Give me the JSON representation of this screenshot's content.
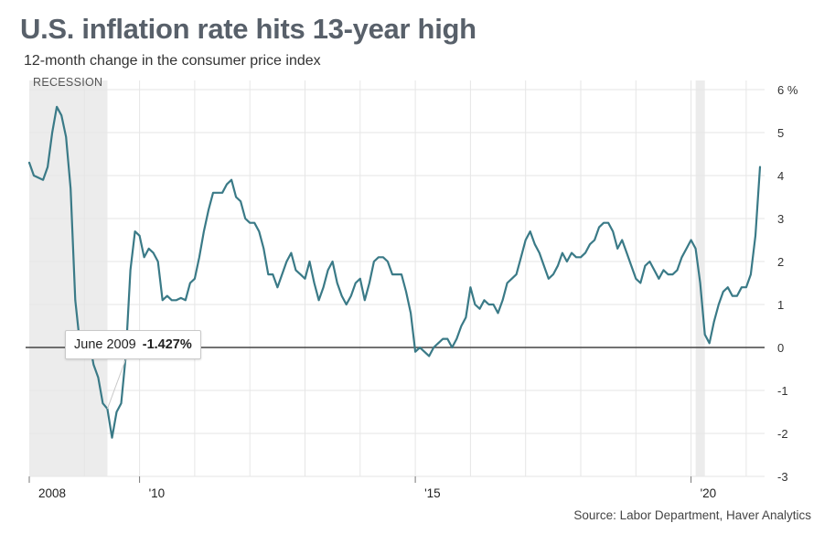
{
  "title": "U.S. inflation rate hits 13-year high",
  "subtitle": "12-month change in the consumer price index",
  "source": "Source: Labor Department, Haver Analytics",
  "recession_label": "RECESSION",
  "tooltip": {
    "label": "June 2009",
    "value": "-1.427%"
  },
  "colors": {
    "line": "#3a7a87",
    "recession": "#ececec",
    "zero_line": "#444444",
    "grid": "#e6e6e6",
    "title": "#58606a"
  },
  "chart_data": {
    "type": "line",
    "title": "U.S. inflation rate hits 13-year high",
    "subtitle": "12-month change in the consumer price index",
    "ylabel": "",
    "xlabel": "",
    "ylim": [
      -3,
      6
    ],
    "xlim": [
      "2008-01",
      "2021-05"
    ],
    "y_ticks": [
      6,
      5,
      4,
      3,
      2,
      1,
      0,
      -1,
      -2,
      -3
    ],
    "y_tick_labels": [
      "6 %",
      "5",
      "4",
      "3",
      "2",
      "1",
      "0",
      "-1",
      "-2",
      "-3"
    ],
    "x_ticks": [
      {
        "date": "2008-01",
        "label": "2008"
      },
      {
        "date": "2010-01",
        "label": "'10"
      },
      {
        "date": "2015-01",
        "label": "'15"
      },
      {
        "date": "2020-01",
        "label": "'20"
      }
    ],
    "x_gridlines": [
      "2009-01",
      "2010-01",
      "2011-01",
      "2012-01",
      "2013-01",
      "2014-01",
      "2015-01",
      "2016-01",
      "2017-01",
      "2018-01",
      "2019-01",
      "2020-01",
      "2021-01"
    ],
    "grid": true,
    "recessions": [
      {
        "start": "2008-01",
        "end": "2009-06"
      },
      {
        "start": "2020-02",
        "end": "2020-04"
      }
    ],
    "annotation": {
      "date": "2009-06",
      "value": -1.427
    },
    "series": [
      {
        "values": [
          [
            "2008-01",
            4.3
          ],
          [
            "2008-02",
            4.0
          ],
          [
            "2008-04",
            3.9
          ],
          [
            "2008-05",
            4.2
          ],
          [
            "2008-06",
            5.0
          ],
          [
            "2008-07",
            5.6
          ],
          [
            "2008-08",
            5.4
          ],
          [
            "2008-09",
            4.9
          ],
          [
            "2008-10",
            3.7
          ],
          [
            "2008-11",
            1.1
          ],
          [
            "2008-12",
            0.1
          ],
          [
            "2009-01",
            0.0
          ],
          [
            "2009-02",
            0.2
          ],
          [
            "2009-03",
            -0.4
          ],
          [
            "2009-04",
            -0.7
          ],
          [
            "2009-05",
            -1.3
          ],
          [
            "2009-06",
            -1.427
          ],
          [
            "2009-07",
            -2.1
          ],
          [
            "2009-08",
            -1.5
          ],
          [
            "2009-09",
            -1.3
          ],
          [
            "2009-10",
            -0.2
          ],
          [
            "2009-11",
            1.8
          ],
          [
            "2009-12",
            2.7
          ],
          [
            "2010-01",
            2.6
          ],
          [
            "2010-02",
            2.1
          ],
          [
            "2010-03",
            2.3
          ],
          [
            "2010-04",
            2.2
          ],
          [
            "2010-05",
            2.0
          ],
          [
            "2010-06",
            1.1
          ],
          [
            "2010-07",
            1.2
          ],
          [
            "2010-08",
            1.1
          ],
          [
            "2010-09",
            1.1
          ],
          [
            "2010-10",
            1.15
          ],
          [
            "2010-11",
            1.1
          ],
          [
            "2010-12",
            1.5
          ],
          [
            "2011-01",
            1.6
          ],
          [
            "2011-02",
            2.1
          ],
          [
            "2011-03",
            2.7
          ],
          [
            "2011-04",
            3.2
          ],
          [
            "2011-05",
            3.6
          ],
          [
            "2011-06",
            3.6
          ],
          [
            "2011-07",
            3.6
          ],
          [
            "2011-08",
            3.8
          ],
          [
            "2011-09",
            3.9
          ],
          [
            "2011-10",
            3.5
          ],
          [
            "2011-11",
            3.4
          ],
          [
            "2011-12",
            3.0
          ],
          [
            "2012-01",
            2.9
          ],
          [
            "2012-02",
            2.9
          ],
          [
            "2012-03",
            2.7
          ],
          [
            "2012-04",
            2.3
          ],
          [
            "2012-05",
            1.7
          ],
          [
            "2012-06",
            1.7
          ],
          [
            "2012-07",
            1.4
          ],
          [
            "2012-08",
            1.7
          ],
          [
            "2012-09",
            2.0
          ],
          [
            "2012-10",
            2.2
          ],
          [
            "2012-11",
            1.8
          ],
          [
            "2012-12",
            1.7
          ],
          [
            "2013-01",
            1.6
          ],
          [
            "2013-02",
            2.0
          ],
          [
            "2013-03",
            1.5
          ],
          [
            "2013-04",
            1.1
          ],
          [
            "2013-05",
            1.4
          ],
          [
            "2013-06",
            1.8
          ],
          [
            "2013-07",
            2.0
          ],
          [
            "2013-08",
            1.5
          ],
          [
            "2013-09",
            1.2
          ],
          [
            "2013-10",
            1.0
          ],
          [
            "2013-11",
            1.2
          ],
          [
            "2013-12",
            1.5
          ],
          [
            "2014-01",
            1.6
          ],
          [
            "2014-02",
            1.1
          ],
          [
            "2014-03",
            1.5
          ],
          [
            "2014-04",
            2.0
          ],
          [
            "2014-05",
            2.1
          ],
          [
            "2014-06",
            2.1
          ],
          [
            "2014-07",
            2.0
          ],
          [
            "2014-08",
            1.7
          ],
          [
            "2014-09",
            1.7
          ],
          [
            "2014-10",
            1.7
          ],
          [
            "2014-11",
            1.3
          ],
          [
            "2014-12",
            0.8
          ],
          [
            "2015-01",
            -0.1
          ],
          [
            "2015-02",
            0.0
          ],
          [
            "2015-03",
            -0.1
          ],
          [
            "2015-04",
            -0.2
          ],
          [
            "2015-05",
            0.0
          ],
          [
            "2015-06",
            0.1
          ],
          [
            "2015-07",
            0.2
          ],
          [
            "2015-08",
            0.2
          ],
          [
            "2015-09",
            0.0
          ],
          [
            "2015-10",
            0.2
          ],
          [
            "2015-11",
            0.5
          ],
          [
            "2015-12",
            0.7
          ],
          [
            "2016-01",
            1.4
          ],
          [
            "2016-02",
            1.0
          ],
          [
            "2016-03",
            0.9
          ],
          [
            "2016-04",
            1.1
          ],
          [
            "2016-05",
            1.0
          ],
          [
            "2016-06",
            1.0
          ],
          [
            "2016-07",
            0.8
          ],
          [
            "2016-08",
            1.1
          ],
          [
            "2016-09",
            1.5
          ],
          [
            "2016-10",
            1.6
          ],
          [
            "2016-11",
            1.7
          ],
          [
            "2016-12",
            2.1
          ],
          [
            "2017-01",
            2.5
          ],
          [
            "2017-02",
            2.7
          ],
          [
            "2017-03",
            2.4
          ],
          [
            "2017-04",
            2.2
          ],
          [
            "2017-05",
            1.9
          ],
          [
            "2017-06",
            1.6
          ],
          [
            "2017-07",
            1.7
          ],
          [
            "2017-08",
            1.9
          ],
          [
            "2017-09",
            2.2
          ],
          [
            "2017-10",
            2.0
          ],
          [
            "2017-11",
            2.2
          ],
          [
            "2017-12",
            2.1
          ],
          [
            "2018-01",
            2.1
          ],
          [
            "2018-02",
            2.2
          ],
          [
            "2018-03",
            2.4
          ],
          [
            "2018-04",
            2.5
          ],
          [
            "2018-05",
            2.8
          ],
          [
            "2018-06",
            2.9
          ],
          [
            "2018-07",
            2.9
          ],
          [
            "2018-08",
            2.7
          ],
          [
            "2018-09",
            2.3
          ],
          [
            "2018-10",
            2.5
          ],
          [
            "2018-11",
            2.2
          ],
          [
            "2018-12",
            1.9
          ],
          [
            "2019-01",
            1.6
          ],
          [
            "2019-02",
            1.5
          ],
          [
            "2019-03",
            1.9
          ],
          [
            "2019-04",
            2.0
          ],
          [
            "2019-05",
            1.8
          ],
          [
            "2019-06",
            1.6
          ],
          [
            "2019-07",
            1.8
          ],
          [
            "2019-08",
            1.7
          ],
          [
            "2019-09",
            1.7
          ],
          [
            "2019-10",
            1.8
          ],
          [
            "2019-11",
            2.1
          ],
          [
            "2019-12",
            2.3
          ],
          [
            "2020-01",
            2.5
          ],
          [
            "2020-02",
            2.3
          ],
          [
            "2020-03",
            1.5
          ],
          [
            "2020-04",
            0.3
          ],
          [
            "2020-05",
            0.1
          ],
          [
            "2020-06",
            0.6
          ],
          [
            "2020-07",
            1.0
          ],
          [
            "2020-08",
            1.3
          ],
          [
            "2020-09",
            1.4
          ],
          [
            "2020-10",
            1.2
          ],
          [
            "2020-11",
            1.2
          ],
          [
            "2020-12",
            1.4
          ],
          [
            "2021-01",
            1.4
          ],
          [
            "2021-02",
            1.7
          ],
          [
            "2021-03",
            2.6
          ],
          [
            "2021-04",
            4.2
          ]
        ]
      }
    ]
  }
}
